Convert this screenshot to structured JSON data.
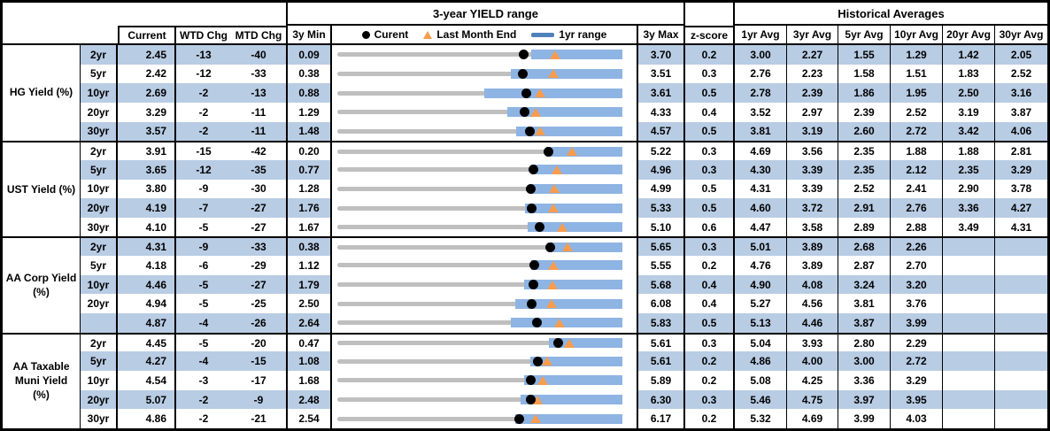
{
  "headers": {
    "range_title": "3-year YIELD range",
    "historical_title": "Historical Averages",
    "current": "Current",
    "wtd": "WTD Chg",
    "mtd": "MTD Chg",
    "min3y": "3y Min",
    "max3y": "3y Max",
    "zscore": "z-score",
    "avg_cols": [
      "1yr Avg",
      "3yr Avg",
      "5yr Avg",
      "10yr Avg",
      "20yr Avg",
      "30yr Avg"
    ],
    "legend": {
      "current": "Curent",
      "last_month_end": "Last Month End",
      "range_1yr": "1yr range"
    }
  },
  "colors": {
    "row_stripe": "#B8CCE4",
    "range_bar": "#8EB4E3",
    "track": "#BFBFBF",
    "last_month_marker": "#F89C4E",
    "legend_bar": "#4F81BD",
    "border": "#000000"
  },
  "chart_data": {
    "type": "range-dot-table",
    "description": "Each row: gray track spans 3y Min to 3y Max; blue bar is 1yr range (low estimated from pixels, high = 3y Max); black dot = Current; orange triangle = Last Month End (Current - MTD Chg/100).",
    "sections": [
      {
        "label": "HG Yield (%)",
        "rows": [
          {
            "tenor": "2yr",
            "current": 2.45,
            "wtd": -13,
            "mtd": -40,
            "min": 0.09,
            "max": 3.7,
            "z": 0.2,
            "low_1yr": 2.54,
            "avgs": [
              "3.00",
              "2.27",
              "1.55",
              "1.29",
              "1.42",
              "2.05"
            ]
          },
          {
            "tenor": "5yr",
            "current": 2.42,
            "wtd": -12,
            "mtd": -33,
            "min": 0.38,
            "max": 3.51,
            "z": 0.3,
            "low_1yr": 2.28,
            "avgs": [
              "2.76",
              "2.23",
              "1.58",
              "1.51",
              "1.83",
              "2.52"
            ]
          },
          {
            "tenor": "10yr",
            "current": 2.69,
            "wtd": -2,
            "mtd": -13,
            "min": 0.88,
            "max": 3.61,
            "z": 0.5,
            "low_1yr": 2.29,
            "avgs": [
              "2.78",
              "2.39",
              "1.86",
              "1.95",
              "2.50",
              "3.16"
            ]
          },
          {
            "tenor": "20yr",
            "current": 3.29,
            "wtd": -2,
            "mtd": -11,
            "min": 1.29,
            "max": 4.33,
            "z": 0.4,
            "low_1yr": 3.1,
            "avgs": [
              "3.52",
              "2.97",
              "2.39",
              "2.52",
              "3.19",
              "3.87"
            ]
          },
          {
            "tenor": "30yr",
            "current": 3.57,
            "wtd": -2,
            "mtd": -11,
            "min": 1.48,
            "max": 4.57,
            "z": 0.5,
            "low_1yr": 3.42,
            "avgs": [
              "3.81",
              "3.19",
              "2.60",
              "2.72",
              "3.42",
              "4.06"
            ]
          }
        ]
      },
      {
        "label": "UST Yield (%)",
        "rows": [
          {
            "tenor": "2yr",
            "current": 3.91,
            "wtd": -15,
            "mtd": -42,
            "min": 0.2,
            "max": 5.22,
            "z": 0.3,
            "low_1yr": 3.88,
            "avgs": [
              "4.69",
              "3.56",
              "2.35",
              "1.88",
              "1.88",
              "2.81"
            ]
          },
          {
            "tenor": "5yr",
            "current": 3.65,
            "wtd": -12,
            "mtd": -35,
            "min": 0.77,
            "max": 4.96,
            "z": 0.3,
            "low_1yr": 3.62,
            "avgs": [
              "4.30",
              "3.39",
              "2.35",
              "2.12",
              "2.35",
              "3.29"
            ]
          },
          {
            "tenor": "10yr",
            "current": 3.8,
            "wtd": -9,
            "mtd": -30,
            "min": 1.28,
            "max": 4.99,
            "z": 0.5,
            "low_1yr": 3.78,
            "avgs": [
              "4.31",
              "3.39",
              "2.52",
              "2.41",
              "2.90",
              "3.78"
            ]
          },
          {
            "tenor": "20yr",
            "current": 4.19,
            "wtd": -7,
            "mtd": -27,
            "min": 1.76,
            "max": 5.33,
            "z": 0.5,
            "low_1yr": 4.11,
            "avgs": [
              "4.60",
              "3.72",
              "2.91",
              "2.76",
              "3.36",
              "4.27"
            ]
          },
          {
            "tenor": "30yr",
            "current": 4.1,
            "wtd": -5,
            "mtd": -27,
            "min": 1.67,
            "max": 5.1,
            "z": 0.6,
            "low_1yr": 3.96,
            "avgs": [
              "4.47",
              "3.58",
              "2.89",
              "2.88",
              "3.49",
              "4.31"
            ]
          }
        ]
      },
      {
        "label": "AA Corp Yield (%)",
        "rows": [
          {
            "tenor": "2yr",
            "current": 4.31,
            "wtd": -9,
            "mtd": -33,
            "min": 0.38,
            "max": 5.65,
            "z": 0.3,
            "low_1yr": 4.28,
            "avgs": [
              "5.01",
              "3.89",
              "2.68",
              "2.26",
              "",
              ""
            ]
          },
          {
            "tenor": "5yr",
            "current": 4.18,
            "wtd": -6,
            "mtd": -29,
            "min": 1.12,
            "max": 5.55,
            "z": 0.2,
            "low_1yr": 4.13,
            "avgs": [
              "4.76",
              "3.89",
              "2.87",
              "2.70",
              "",
              ""
            ]
          },
          {
            "tenor": "10yr",
            "current": 4.46,
            "wtd": -5,
            "mtd": -27,
            "min": 1.79,
            "max": 5.68,
            "z": 0.4,
            "low_1yr": 4.34,
            "avgs": [
              "4.90",
              "4.08",
              "3.24",
              "3.20",
              "",
              ""
            ]
          },
          {
            "tenor": "20yr",
            "current": 4.94,
            "wtd": -5,
            "mtd": -25,
            "min": 2.5,
            "max": 6.08,
            "z": 0.4,
            "low_1yr": 4.73,
            "avgs": [
              "5.27",
              "4.56",
              "3.81",
              "3.76",
              "",
              ""
            ]
          },
          {
            "tenor": "",
            "current": 4.87,
            "wtd": -4,
            "mtd": -26,
            "min": 2.64,
            "max": 5.83,
            "z": 0.5,
            "low_1yr": 4.58,
            "avgs": [
              "5.13",
              "4.46",
              "3.87",
              "3.99",
              "",
              ""
            ]
          }
        ]
      },
      {
        "label": "AA Taxable Muni Yield (%)",
        "rows": [
          {
            "tenor": "2yr",
            "current": 4.45,
            "wtd": -5,
            "mtd": -20,
            "min": 0.47,
            "max": 5.61,
            "z": 0.3,
            "low_1yr": 4.29,
            "avgs": [
              "5.04",
              "3.93",
              "2.80",
              "2.29",
              "",
              ""
            ]
          },
          {
            "tenor": "5yr",
            "current": 4.27,
            "wtd": -4,
            "mtd": -15,
            "min": 1.08,
            "max": 5.61,
            "z": 0.2,
            "low_1yr": 4.14,
            "avgs": [
              "4.86",
              "4.00",
              "3.00",
              "2.72",
              "",
              ""
            ]
          },
          {
            "tenor": "10yr",
            "current": 4.54,
            "wtd": -3,
            "mtd": -17,
            "min": 1.68,
            "max": 5.89,
            "z": 0.2,
            "low_1yr": 4.44,
            "avgs": [
              "5.08",
              "4.25",
              "3.36",
              "3.29",
              "",
              ""
            ]
          },
          {
            "tenor": "20yr",
            "current": 5.07,
            "wtd": -2,
            "mtd": -9,
            "min": 2.48,
            "max": 6.3,
            "z": 0.3,
            "low_1yr": 4.94,
            "avgs": [
              "5.46",
              "4.75",
              "3.97",
              "3.95",
              "",
              ""
            ]
          },
          {
            "tenor": "30yr",
            "current": 4.86,
            "wtd": -2,
            "mtd": -21,
            "min": 2.54,
            "max": 6.17,
            "z": 0.2,
            "low_1yr": 4.81,
            "avgs": [
              "5.32",
              "4.69",
              "3.99",
              "4.03",
              "",
              ""
            ]
          }
        ]
      }
    ]
  }
}
